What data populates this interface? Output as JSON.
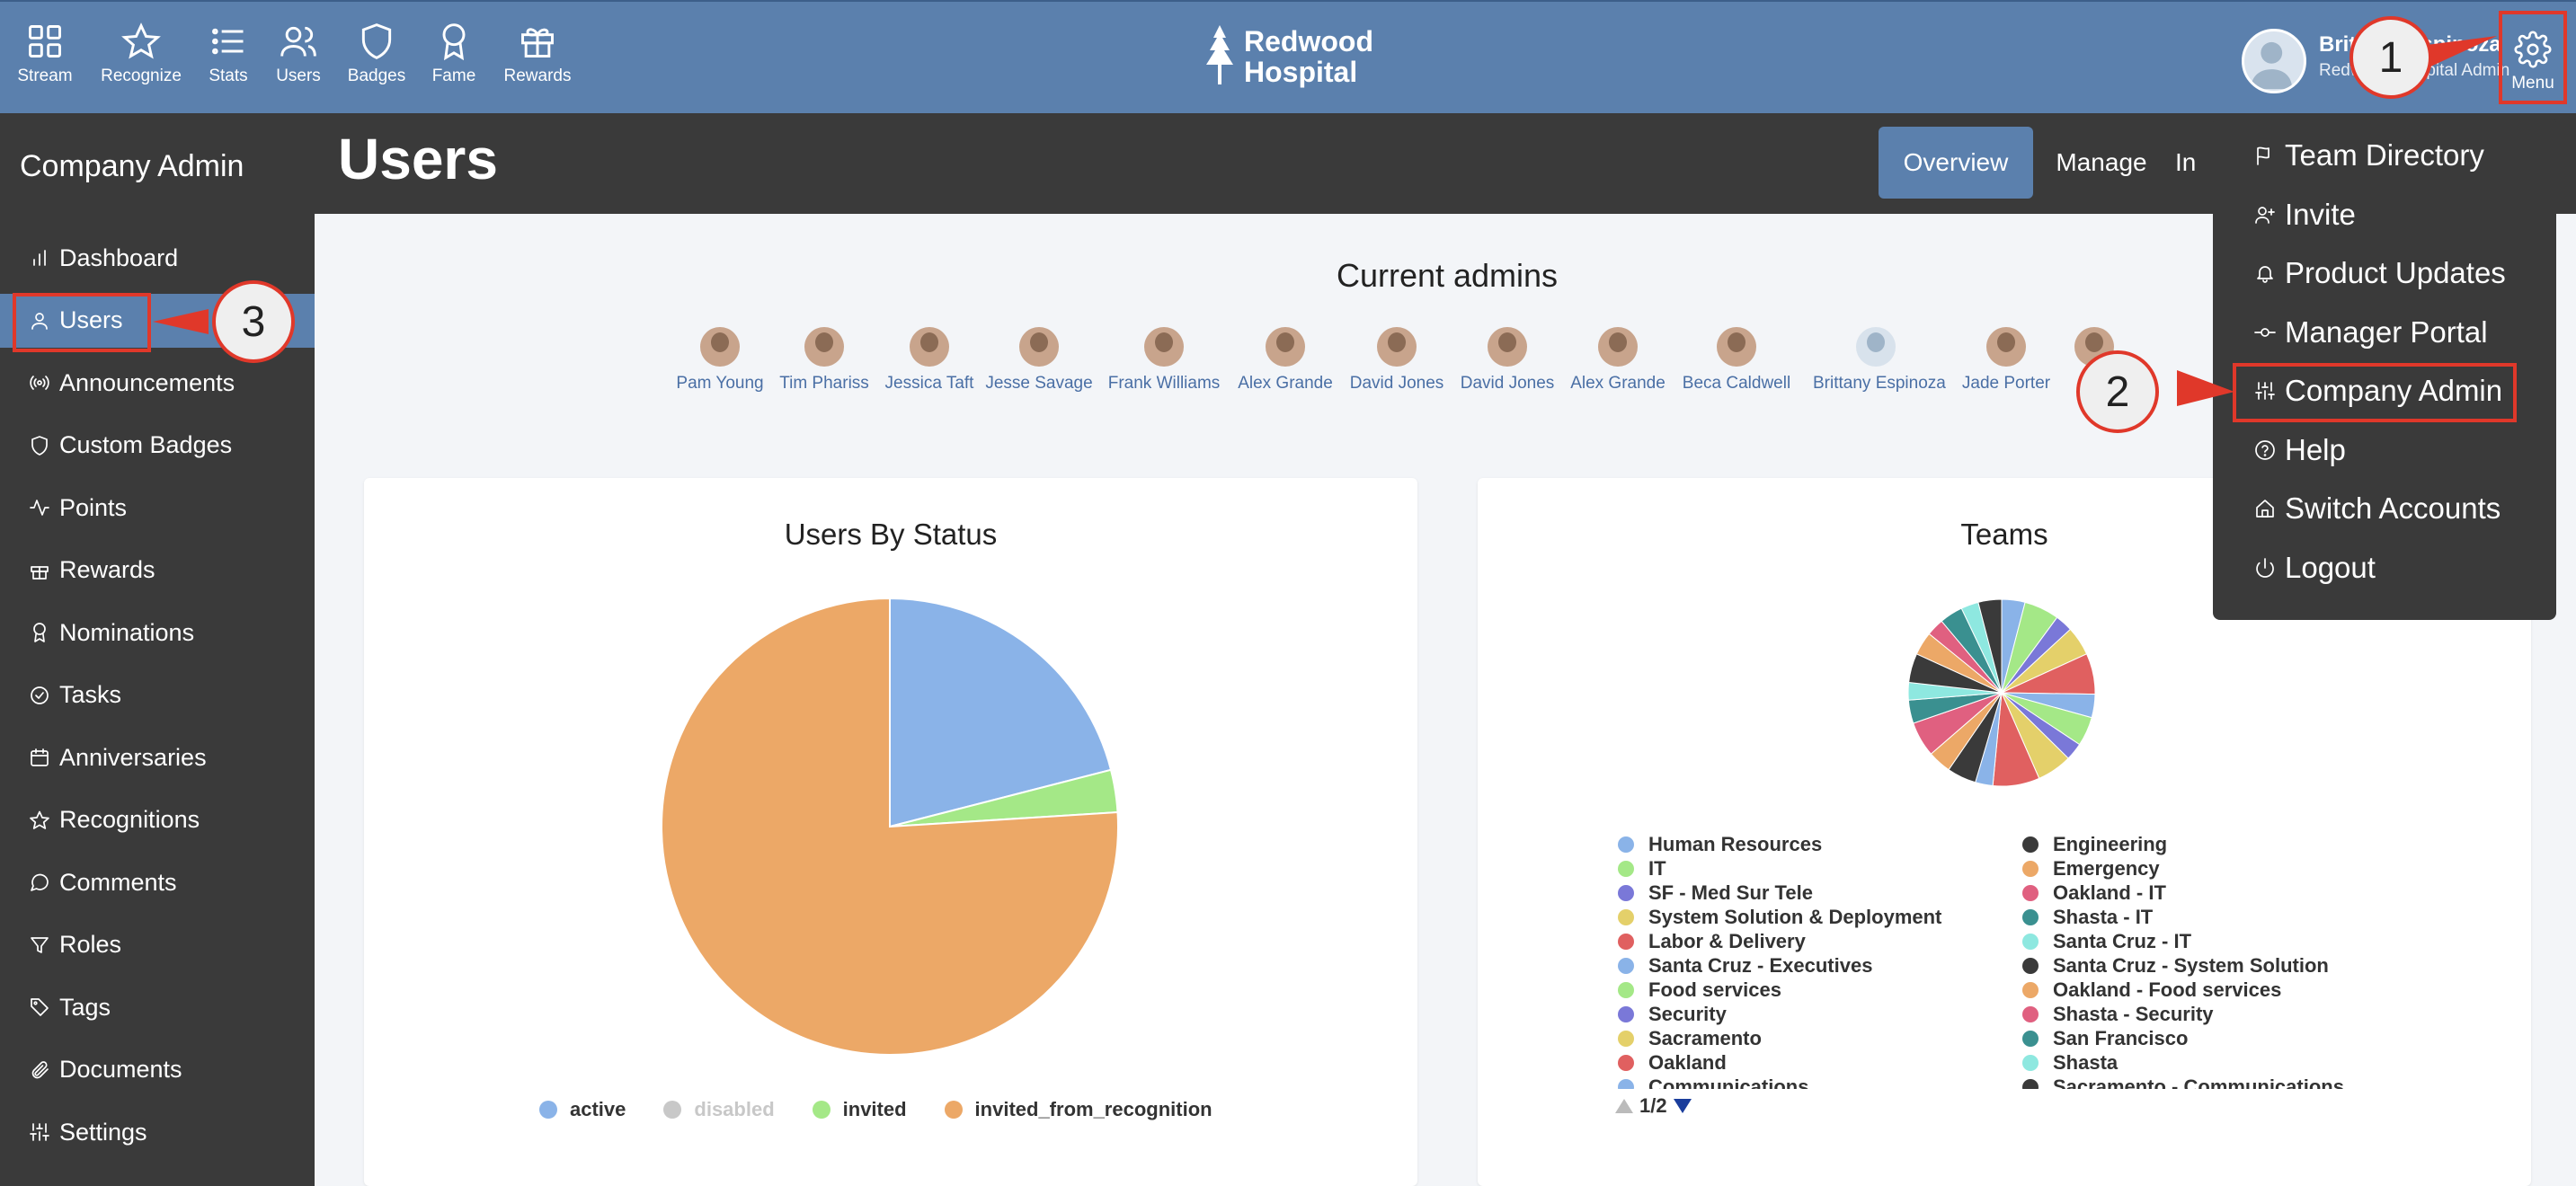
{
  "topnav": {
    "items": [
      {
        "label": "Stream",
        "icon": "grid-icon"
      },
      {
        "label": "Recognize",
        "icon": "star-icon"
      },
      {
        "label": "Stats",
        "icon": "list-icon"
      },
      {
        "label": "Users",
        "icon": "users-icon"
      },
      {
        "label": "Badges",
        "icon": "shield-icon"
      },
      {
        "label": "Fame",
        "icon": "award-icon"
      },
      {
        "label": "Rewards",
        "icon": "gift-icon"
      }
    ],
    "logo_line1": "Redwood",
    "logo_line2": "Hospital",
    "user_name": "Brittany Espinoza",
    "user_sub": "Redwood Hospital Admin"
  },
  "menu": {
    "label": "Menu"
  },
  "sidebar": {
    "title": "Company Admin",
    "items": [
      {
        "label": "Dashboard",
        "icon": "bar-chart-icon"
      },
      {
        "label": "Users",
        "icon": "user-icon"
      },
      {
        "label": "Announcements",
        "icon": "broadcast-icon"
      },
      {
        "label": "Custom Badges",
        "icon": "shield-icon"
      },
      {
        "label": "Points",
        "icon": "activity-icon"
      },
      {
        "label": "Rewards",
        "icon": "gift-icon"
      },
      {
        "label": "Nominations",
        "icon": "award-icon"
      },
      {
        "label": "Tasks",
        "icon": "check-circle-icon"
      },
      {
        "label": "Anniversaries",
        "icon": "calendar-icon"
      },
      {
        "label": "Recognitions",
        "icon": "star-icon"
      },
      {
        "label": "Comments",
        "icon": "comment-icon"
      },
      {
        "label": "Roles",
        "icon": "filter-icon"
      },
      {
        "label": "Tags",
        "icon": "tag-icon"
      },
      {
        "label": "Documents",
        "icon": "paperclip-icon"
      },
      {
        "label": "Settings",
        "icon": "sliders-icon"
      }
    ]
  },
  "page": {
    "title": "Users",
    "tabs": [
      "Overview",
      "Manage",
      "In"
    ]
  },
  "admins": {
    "title": "Current admins",
    "people": [
      "Pam Young",
      "Tim Phariss",
      "Jessica Taft",
      "Jesse Savage",
      "Frank Williams",
      "Alex Grande",
      "David Jones",
      "David Jones",
      "Alex Grande",
      "Beca Caldwell",
      "Brittany Espinoza",
      "Jade Porter",
      "M"
    ]
  },
  "dropdown": {
    "items": [
      {
        "label": "Team Directory",
        "icon": "flag-icon"
      },
      {
        "label": "Invite",
        "icon": "user-plus-icon"
      },
      {
        "label": "Product Updates",
        "icon": "bell-icon"
      },
      {
        "label": "Manager Portal",
        "icon": "commit-icon"
      },
      {
        "label": "Company Admin",
        "icon": "sliders-icon"
      },
      {
        "label": "Help",
        "icon": "help-circle-icon"
      },
      {
        "label": "Switch Accounts",
        "icon": "home-icon"
      },
      {
        "label": "Logout",
        "icon": "power-icon"
      }
    ]
  },
  "callouts": [
    "1",
    "2",
    "3"
  ],
  "colors": {
    "topbar": "#5b80ad",
    "dark": "#3a3a3a",
    "highlight": "#e0382a",
    "active_pie": "#8ab3e8",
    "invited_pie": "#a4e887",
    "invited_from_recognition_pie": "#eca867"
  },
  "chart_data": [
    {
      "type": "pie",
      "title": "Users By Status",
      "categories": [
        "active",
        "disabled",
        "invited",
        "invited_from_recognition"
      ],
      "values": [
        21,
        0,
        3,
        76
      ],
      "colors": [
        "#8ab3e8",
        "#c8c8c8",
        "#a4e887",
        "#eca867"
      ],
      "disabled_series": [
        "disabled"
      ],
      "legend_position": "bottom"
    },
    {
      "type": "pie",
      "title": "Teams",
      "categories": [
        "Human Resources",
        "IT",
        "SF - Med Sur Tele",
        "System Solution & Deployment",
        "Labor & Delivery",
        "Santa Cruz - Executives",
        "Food services",
        "Security",
        "Sacramento",
        "Oakland",
        "Communications",
        "Engineering",
        "Emergency",
        "Oakland - IT",
        "Shasta - IT",
        "Santa Cruz - IT",
        "Santa Cruz - System Solution",
        "Oakland - Food services",
        "Shasta - Security",
        "San Francisco",
        "Shasta",
        "Sacramento - Communications"
      ],
      "values": [
        4,
        6,
        3,
        5,
        7,
        4,
        5,
        3,
        6,
        8,
        3,
        5,
        4,
        6,
        4,
        3,
        5,
        4,
        3,
        4,
        3,
        4
      ],
      "colors": [
        "#8ab3e8",
        "#a4e887",
        "#7a78d8",
        "#e4d06a",
        "#e06060",
        "#8ab3e8",
        "#a4e887",
        "#7a78d8",
        "#e4d06a",
        "#e06060",
        "#8ab3e8",
        "#3a3a3a",
        "#eca867",
        "#e06080",
        "#3a9090",
        "#8ee8e0",
        "#3a3a3a",
        "#eca867",
        "#e06080",
        "#3a9090",
        "#8ee8e0",
        "#3a3a3a"
      ],
      "legend_position": "bottom",
      "legend_page": "1/2"
    }
  ]
}
